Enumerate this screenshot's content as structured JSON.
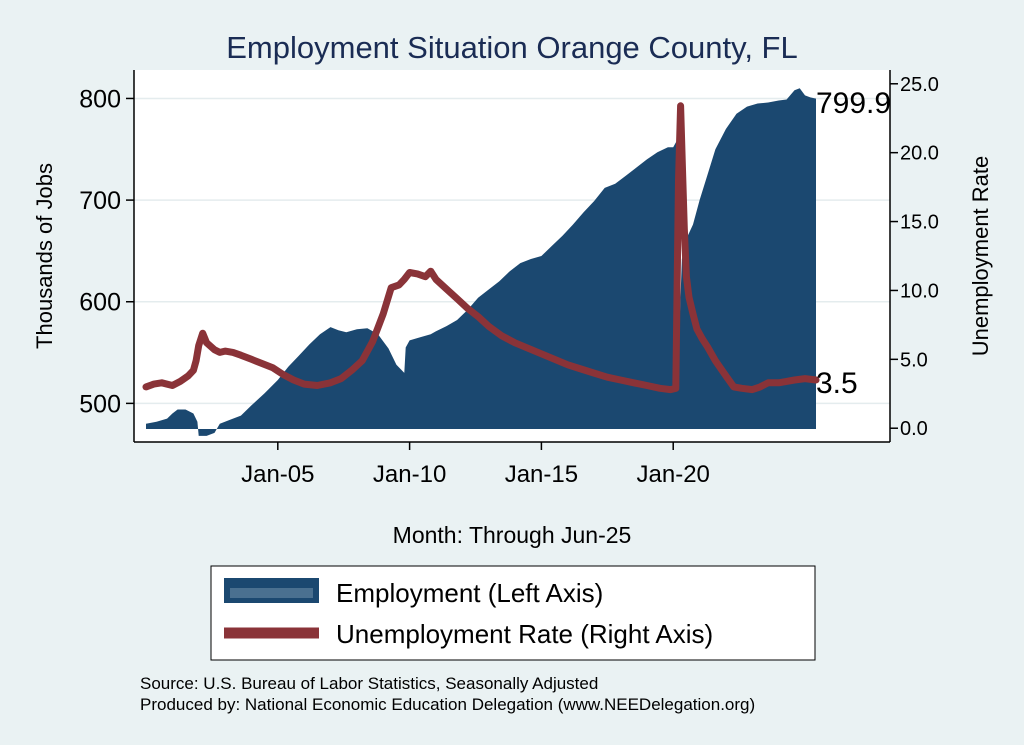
{
  "chart_data": {
    "type": "area+line",
    "title": "Employment Situation Orange  County, FL",
    "xlabel": "Month: Through Jun-25",
    "ylabel_left": "Thousands of Jobs",
    "ylabel_right": "Unemployment Rate",
    "x_range": [
      2000.0,
      2025.4167
    ],
    "left_ylim": [
      462,
      828
    ],
    "right_ylim": [
      -1.0,
      26.0
    ],
    "x_ticks": [
      {
        "value": 2005.0,
        "label": "Jan-05"
      },
      {
        "value": 2010.0,
        "label": "Jan-10"
      },
      {
        "value": 2015.0,
        "label": "Jan-15"
      },
      {
        "value": 2020.0,
        "label": "Jan-20"
      }
    ],
    "left_ticks": [
      {
        "value": 500,
        "label": "500"
      },
      {
        "value": 600,
        "label": "600"
      },
      {
        "value": 700,
        "label": "700"
      },
      {
        "value": 800,
        "label": "800"
      }
    ],
    "right_ticks": [
      {
        "value": 0,
        "label": "0.0"
      },
      {
        "value": 5,
        "label": "5.0"
      },
      {
        "value": 10,
        "label": "10.0"
      },
      {
        "value": 15,
        "label": "15.0"
      },
      {
        "value": 20,
        "label": "20.0"
      },
      {
        "value": 25,
        "label": "25.0"
      }
    ],
    "series": [
      {
        "name": "Employment (Left Axis)",
        "axis": "left",
        "type": "area",
        "color": "#1b4870",
        "x": [
          2000.0,
          2000.4,
          2000.8,
          2001.0,
          2001.2,
          2001.5,
          2001.8,
          2001.95,
          2002.0,
          2002.3,
          2002.6,
          2002.8,
          2003.2,
          2003.6,
          2004.0,
          2004.5,
          2005.0,
          2005.4,
          2005.8,
          2006.2,
          2006.6,
          2007.0,
          2007.3,
          2007.6,
          2008.0,
          2008.4,
          2008.8,
          2009.2,
          2009.5,
          2009.8,
          2009.85,
          2010.0,
          2010.4,
          2010.8,
          2011.0,
          2011.4,
          2011.8,
          2012.2,
          2012.6,
          2013.0,
          2013.4,
          2013.8,
          2014.2,
          2014.6,
          2015.0,
          2015.4,
          2015.8,
          2016.2,
          2016.6,
          2017.0,
          2017.4,
          2017.8,
          2018.2,
          2018.6,
          2019.0,
          2019.4,
          2019.8,
          2020.0,
          2020.17,
          2020.25,
          2020.33,
          2020.5,
          2020.75,
          2021.0,
          2021.3,
          2021.6,
          2022.0,
          2022.4,
          2022.8,
          2023.2,
          2023.6,
          2024.0,
          2024.3,
          2024.6,
          2024.8,
          2025.0,
          2025.2,
          2025.4167
        ],
        "values": [
          480,
          482,
          485,
          490,
          494,
          494,
          490,
          482,
          468,
          468,
          471,
          480,
          484,
          488,
          498,
          510,
          523,
          536,
          547,
          558,
          568,
          575,
          572,
          570,
          573,
          574,
          568,
          554,
          538,
          530,
          555,
          562,
          565,
          568,
          571,
          576,
          582,
          592,
          604,
          612,
          620,
          630,
          638,
          642,
          645,
          655,
          665,
          676,
          688,
          699,
          712,
          716,
          724,
          732,
          740,
          747,
          752,
          752,
          760,
          585,
          642,
          662,
          676,
          700,
          725,
          750,
          770,
          785,
          792,
          795,
          796,
          798,
          799,
          808,
          810,
          803,
          801,
          799.9
        ]
      },
      {
        "name": "Unemployment Rate (Right Axis)",
        "axis": "right",
        "type": "line",
        "color": "#8a3338",
        "x": [
          2000.0,
          2000.3,
          2000.6,
          2001.0,
          2001.3,
          2001.6,
          2001.8,
          2001.9,
          2002.0,
          2002.15,
          2002.3,
          2002.6,
          2002.8,
          2003.0,
          2003.3,
          2003.6,
          2004.0,
          2004.4,
          2004.8,
          2005.2,
          2005.6,
          2006.0,
          2006.5,
          2007.0,
          2007.4,
          2007.8,
          2008.2,
          2008.6,
          2009.0,
          2009.3,
          2009.6,
          2009.8,
          2010.0,
          2010.3,
          2010.6,
          2010.8,
          2011.0,
          2011.4,
          2011.8,
          2012.2,
          2012.6,
          2013.0,
          2013.5,
          2014.0,
          2014.5,
          2015.0,
          2015.5,
          2016.0,
          2016.5,
          2017.0,
          2017.5,
          2018.0,
          2018.5,
          2019.0,
          2019.5,
          2019.9,
          2020.1,
          2020.2,
          2020.28,
          2020.35,
          2020.42,
          2020.5,
          2020.6,
          2020.75,
          2020.9,
          2021.1,
          2021.3,
          2021.6,
          2022.0,
          2022.3,
          2022.6,
          2023.0,
          2023.3,
          2023.6,
          2024.0,
          2024.3,
          2024.6,
          2025.0,
          2025.4167
        ],
        "values": [
          3.0,
          3.2,
          3.3,
          3.1,
          3.4,
          3.8,
          4.2,
          4.9,
          6.0,
          6.9,
          6.2,
          5.7,
          5.5,
          5.6,
          5.5,
          5.3,
          5.0,
          4.7,
          4.4,
          3.9,
          3.5,
          3.2,
          3.1,
          3.3,
          3.6,
          4.2,
          4.9,
          6.3,
          8.3,
          10.2,
          10.4,
          10.8,
          11.3,
          11.2,
          11.0,
          11.4,
          10.8,
          10.1,
          9.4,
          8.7,
          8.1,
          7.4,
          6.7,
          6.2,
          5.8,
          5.4,
          5.0,
          4.6,
          4.3,
          4.0,
          3.7,
          3.5,
          3.3,
          3.1,
          2.9,
          2.8,
          2.9,
          18.0,
          23.4,
          19.0,
          14.5,
          11.0,
          9.5,
          8.3,
          7.2,
          6.5,
          5.9,
          4.9,
          3.8,
          3.0,
          2.9,
          2.8,
          3.0,
          3.3,
          3.3,
          3.4,
          3.5,
          3.6,
          3.5
        ]
      }
    ],
    "end_labels": {
      "employment": "799.9",
      "unemployment": "3.5"
    },
    "legend_position": "bottom"
  },
  "legend": {
    "items": [
      "Employment (Left Axis)",
      "Unemployment Rate (Right Axis)"
    ]
  },
  "source": {
    "line1": "Source: U.S. Bureau of Labor Statistics, Seasonally Adjusted",
    "line2": "Produced by: National Economic Education Delegation (www.NEEDelegation.org)"
  },
  "colors": {
    "background": "#eaf2f3",
    "plot_background": "#ffffff",
    "employment": "#1b4870",
    "unemployment": "#8a3338",
    "title": "#1a2c54"
  }
}
